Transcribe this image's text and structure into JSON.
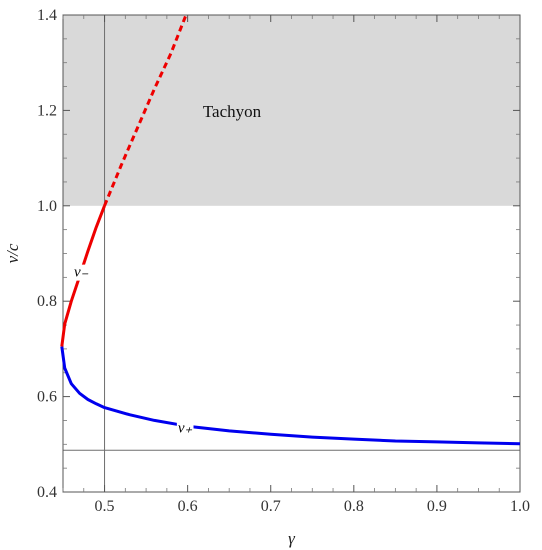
{
  "chart_data": {
    "type": "line",
    "title": "",
    "xlabel": "γ",
    "ylabel": "v/c",
    "xlim": [
      0.45,
      1.0
    ],
    "ylim": [
      0.4,
      1.4
    ],
    "x_ticks": [
      "0.5",
      "0.6",
      "0.7",
      "0.8",
      "0.9",
      "1.0"
    ],
    "y_ticks": [
      "0.4",
      "0.6",
      "0.8",
      "1.0",
      "1.2",
      "1.4"
    ],
    "grid": false,
    "shaded_region": {
      "label": "Tachyon",
      "x_range": [
        0.45,
        1.0
      ],
      "y_range": [
        1.0,
        1.4
      ],
      "color": "#d9d9d9"
    },
    "reference_lines": {
      "vertical_x": 0.5,
      "horizontal_y": 0.4875
    },
    "series": [
      {
        "name": "v₊",
        "color": "#0000ee",
        "style": "solid",
        "points": [
          [
            0.4485,
            0.705
          ],
          [
            0.452,
            0.66
          ],
          [
            0.46,
            0.627
          ],
          [
            0.47,
            0.607
          ],
          [
            0.48,
            0.594
          ],
          [
            0.49,
            0.585
          ],
          [
            0.5,
            0.577
          ],
          [
            0.53,
            0.562
          ],
          [
            0.56,
            0.55
          ],
          [
            0.6,
            0.538
          ],
          [
            0.65,
            0.528
          ],
          [
            0.7,
            0.521
          ],
          [
            0.75,
            0.515
          ],
          [
            0.8,
            0.511
          ],
          [
            0.85,
            0.507
          ],
          [
            0.9,
            0.505
          ],
          [
            0.95,
            0.503
          ],
          [
            1.0,
            0.501
          ]
        ]
      },
      {
        "name": "v₋",
        "color": "#ee0000",
        "style": "solid",
        "points": [
          [
            0.4485,
            0.705
          ],
          [
            0.452,
            0.752
          ],
          [
            0.46,
            0.8
          ],
          [
            0.47,
            0.852
          ],
          [
            0.48,
            0.905
          ],
          [
            0.49,
            0.955
          ],
          [
            0.5,
            1.0
          ]
        ]
      },
      {
        "name": "",
        "color": "#ee0000",
        "style": "dashed",
        "points": [
          [
            0.5,
            1.0
          ],
          [
            0.52,
            1.085
          ],
          [
            0.54,
            1.165
          ],
          [
            0.56,
            1.245
          ],
          [
            0.58,
            1.32
          ],
          [
            0.598,
            1.4
          ]
        ]
      }
    ],
    "annotations": [
      {
        "text": "v₋",
        "x": 0.472,
        "y": 0.862
      },
      {
        "text": "v₊",
        "x": 0.597,
        "y": 0.535
      }
    ]
  }
}
